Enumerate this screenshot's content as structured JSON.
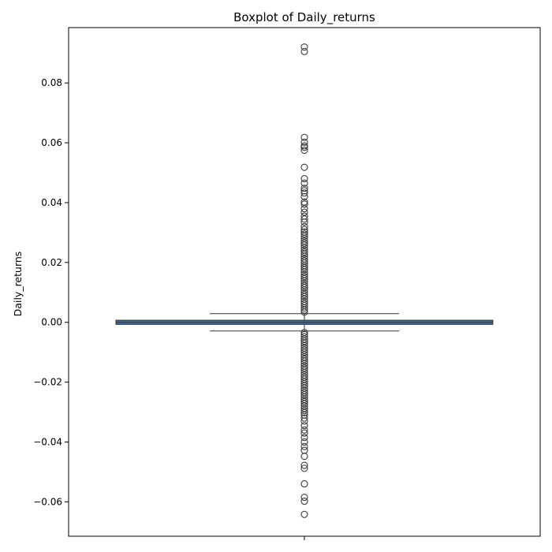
{
  "chart_data": {
    "type": "boxplot",
    "title": "Boxplot of Daily_returns",
    "ylabel": "Daily_returns",
    "xlabel": "",
    "ylim": [
      -0.0715,
      0.0985
    ],
    "yticks": [
      -0.06,
      -0.04,
      -0.02,
      0.0,
      0.02,
      0.04,
      0.06,
      0.08
    ],
    "ytick_labels": [
      "−0.06",
      "−0.04",
      "−0.02",
      "0.00",
      "0.02",
      "0.04",
      "0.06",
      "0.08"
    ],
    "grid": false,
    "box": {
      "q1": -0.0007,
      "median": 0.0,
      "q3": 0.0007,
      "whisker_low": -0.0029,
      "whisker_high": 0.0029,
      "fill": "#3a6e9e",
      "edge": "#333333"
    },
    "outliers_high": [
      0.092,
      0.0905,
      0.0618,
      0.0602,
      0.059,
      0.0585,
      0.0575,
      0.0518,
      0.048,
      0.0465,
      0.0448,
      0.044,
      0.0432,
      0.042,
      0.0402,
      0.0395,
      0.038,
      0.0368,
      0.0355,
      0.0345,
      0.0335,
      0.032,
      0.031,
      0.0302,
      0.0295,
      0.0288,
      0.028,
      0.0272,
      0.0265,
      0.0258,
      0.025,
      0.0242,
      0.0235,
      0.0228,
      0.022,
      0.0212,
      0.0205,
      0.0198,
      0.019,
      0.0183,
      0.0176,
      0.0168,
      0.016,
      0.0153,
      0.0146,
      0.0138,
      0.013,
      0.0123,
      0.0116,
      0.0108,
      0.01,
      0.0093,
      0.0086,
      0.0078,
      0.007,
      0.0063,
      0.0056,
      0.0048,
      0.0041,
      0.0034
    ],
    "outliers_low": [
      -0.0034,
      -0.0041,
      -0.0048,
      -0.0056,
      -0.0063,
      -0.007,
      -0.0078,
      -0.0086,
      -0.0093,
      -0.01,
      -0.0108,
      -0.0116,
      -0.0123,
      -0.013,
      -0.0138,
      -0.0146,
      -0.0153,
      -0.016,
      -0.0168,
      -0.0176,
      -0.0183,
      -0.019,
      -0.0198,
      -0.0205,
      -0.0212,
      -0.022,
      -0.0228,
      -0.0235,
      -0.0242,
      -0.025,
      -0.0258,
      -0.0265,
      -0.0272,
      -0.028,
      -0.0288,
      -0.0295,
      -0.0302,
      -0.031,
      -0.032,
      -0.033,
      -0.0345,
      -0.036,
      -0.037,
      -0.0385,
      -0.04,
      -0.0415,
      -0.0428,
      -0.0448,
      -0.0478,
      -0.0488,
      -0.054,
      -0.0585,
      -0.0598,
      -0.0642
    ]
  }
}
